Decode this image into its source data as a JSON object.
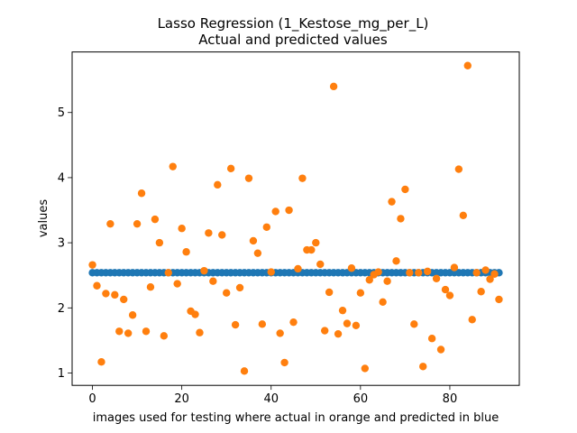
{
  "chart_data": {
    "type": "scatter",
    "title": "Lasso Regression (1_Kestose_mg_per_L)",
    "subtitle": "Actual and predicted values",
    "xlabel": "images used for testing where actual in orange and predicted in blue",
    "ylabel": "values",
    "xlim": [
      -4.55,
      95.55
    ],
    "ylim": [
      0.81,
      5.93
    ],
    "xticks": [
      0,
      20,
      40,
      60,
      80
    ],
    "yticks": [
      1,
      2,
      3,
      4,
      5
    ],
    "grid": false,
    "series": [
      {
        "color": "#1f77b4",
        "x": [
          0,
          1,
          2,
          3,
          4,
          5,
          6,
          7,
          8,
          9,
          10,
          11,
          12,
          13,
          14,
          15,
          16,
          17,
          18,
          19,
          20,
          21,
          22,
          23,
          24,
          25,
          26,
          27,
          28,
          29,
          30,
          31,
          32,
          33,
          34,
          35,
          36,
          37,
          38,
          39,
          40,
          41,
          42,
          43,
          44,
          45,
          46,
          47,
          48,
          49,
          50,
          51,
          52,
          53,
          54,
          55,
          56,
          57,
          58,
          59,
          60,
          61,
          62,
          63,
          64,
          65,
          66,
          67,
          68,
          69,
          70,
          71,
          72,
          73,
          74,
          75,
          76,
          77,
          78,
          79,
          80,
          81,
          82,
          83,
          84,
          85,
          86,
          87,
          88,
          89,
          90,
          91
        ],
        "y": [
          2.54,
          2.54,
          2.54,
          2.54,
          2.54,
          2.54,
          2.54,
          2.54,
          2.54,
          2.54,
          2.54,
          2.54,
          2.54,
          2.54,
          2.54,
          2.54,
          2.54,
          2.54,
          2.54,
          2.54,
          2.54,
          2.54,
          2.54,
          2.54,
          2.54,
          2.54,
          2.54,
          2.54,
          2.54,
          2.54,
          2.54,
          2.54,
          2.54,
          2.54,
          2.54,
          2.54,
          2.54,
          2.54,
          2.54,
          2.54,
          2.54,
          2.54,
          2.54,
          2.54,
          2.54,
          2.54,
          2.54,
          2.54,
          2.54,
          2.54,
          2.54,
          2.54,
          2.54,
          2.54,
          2.54,
          2.54,
          2.54,
          2.54,
          2.54,
          2.54,
          2.54,
          2.54,
          2.54,
          2.54,
          2.54,
          2.54,
          2.54,
          2.54,
          2.54,
          2.54,
          2.54,
          2.54,
          2.54,
          2.54,
          2.54,
          2.54,
          2.54,
          2.54,
          2.54,
          2.54,
          2.54,
          2.54,
          2.54,
          2.54,
          2.54,
          2.54,
          2.54,
          2.54,
          2.54,
          2.54,
          2.54,
          2.54
        ]
      },
      {
        "color": "#ff7f0e",
        "x": [
          0,
          1,
          2,
          3,
          4,
          5,
          6,
          7,
          8,
          9,
          10,
          11,
          12,
          13,
          14,
          15,
          16,
          17,
          18,
          19,
          20,
          21,
          22,
          23,
          24,
          25,
          26,
          27,
          28,
          29,
          30,
          31,
          32,
          33,
          34,
          35,
          36,
          37,
          38,
          39,
          40,
          41,
          42,
          43,
          44,
          45,
          46,
          47,
          48,
          49,
          50,
          51,
          52,
          53,
          54,
          55,
          56,
          57,
          58,
          59,
          60,
          61,
          62,
          63,
          64,
          65,
          66,
          67,
          68,
          69,
          70,
          71,
          72,
          73,
          74,
          75,
          76,
          77,
          78,
          79,
          80,
          81,
          82,
          83,
          84,
          85,
          86,
          87,
          88,
          89,
          90,
          91
        ],
        "y": [
          2.66,
          2.34,
          1.17,
          2.22,
          3.29,
          2.2,
          1.64,
          2.13,
          1.61,
          1.89,
          3.29,
          3.76,
          1.64,
          2.32,
          3.36,
          3.0,
          1.57,
          2.54,
          4.17,
          2.37,
          3.22,
          2.86,
          1.95,
          1.9,
          1.62,
          2.57,
          3.15,
          2.41,
          3.89,
          3.12,
          2.23,
          4.14,
          1.74,
          2.31,
          1.03,
          3.99,
          3.03,
          2.84,
          1.75,
          3.24,
          2.55,
          3.48,
          1.61,
          1.16,
          3.5,
          1.78,
          2.6,
          3.99,
          2.89,
          2.89,
          3.0,
          2.67,
          1.65,
          2.24,
          5.4,
          1.6,
          1.96,
          1.76,
          2.61,
          1.73,
          2.23,
          1.07,
          2.43,
          2.51,
          2.55,
          2.09,
          2.41,
          3.63,
          2.72,
          3.37,
          3.82,
          2.54,
          1.75,
          2.54,
          1.1,
          2.56,
          1.53,
          2.45,
          1.36,
          2.28,
          2.19,
          2.62,
          4.13,
          3.42,
          5.72,
          1.82,
          2.54,
          2.25,
          2.58,
          2.44,
          2.52,
          2.13
        ]
      }
    ]
  }
}
